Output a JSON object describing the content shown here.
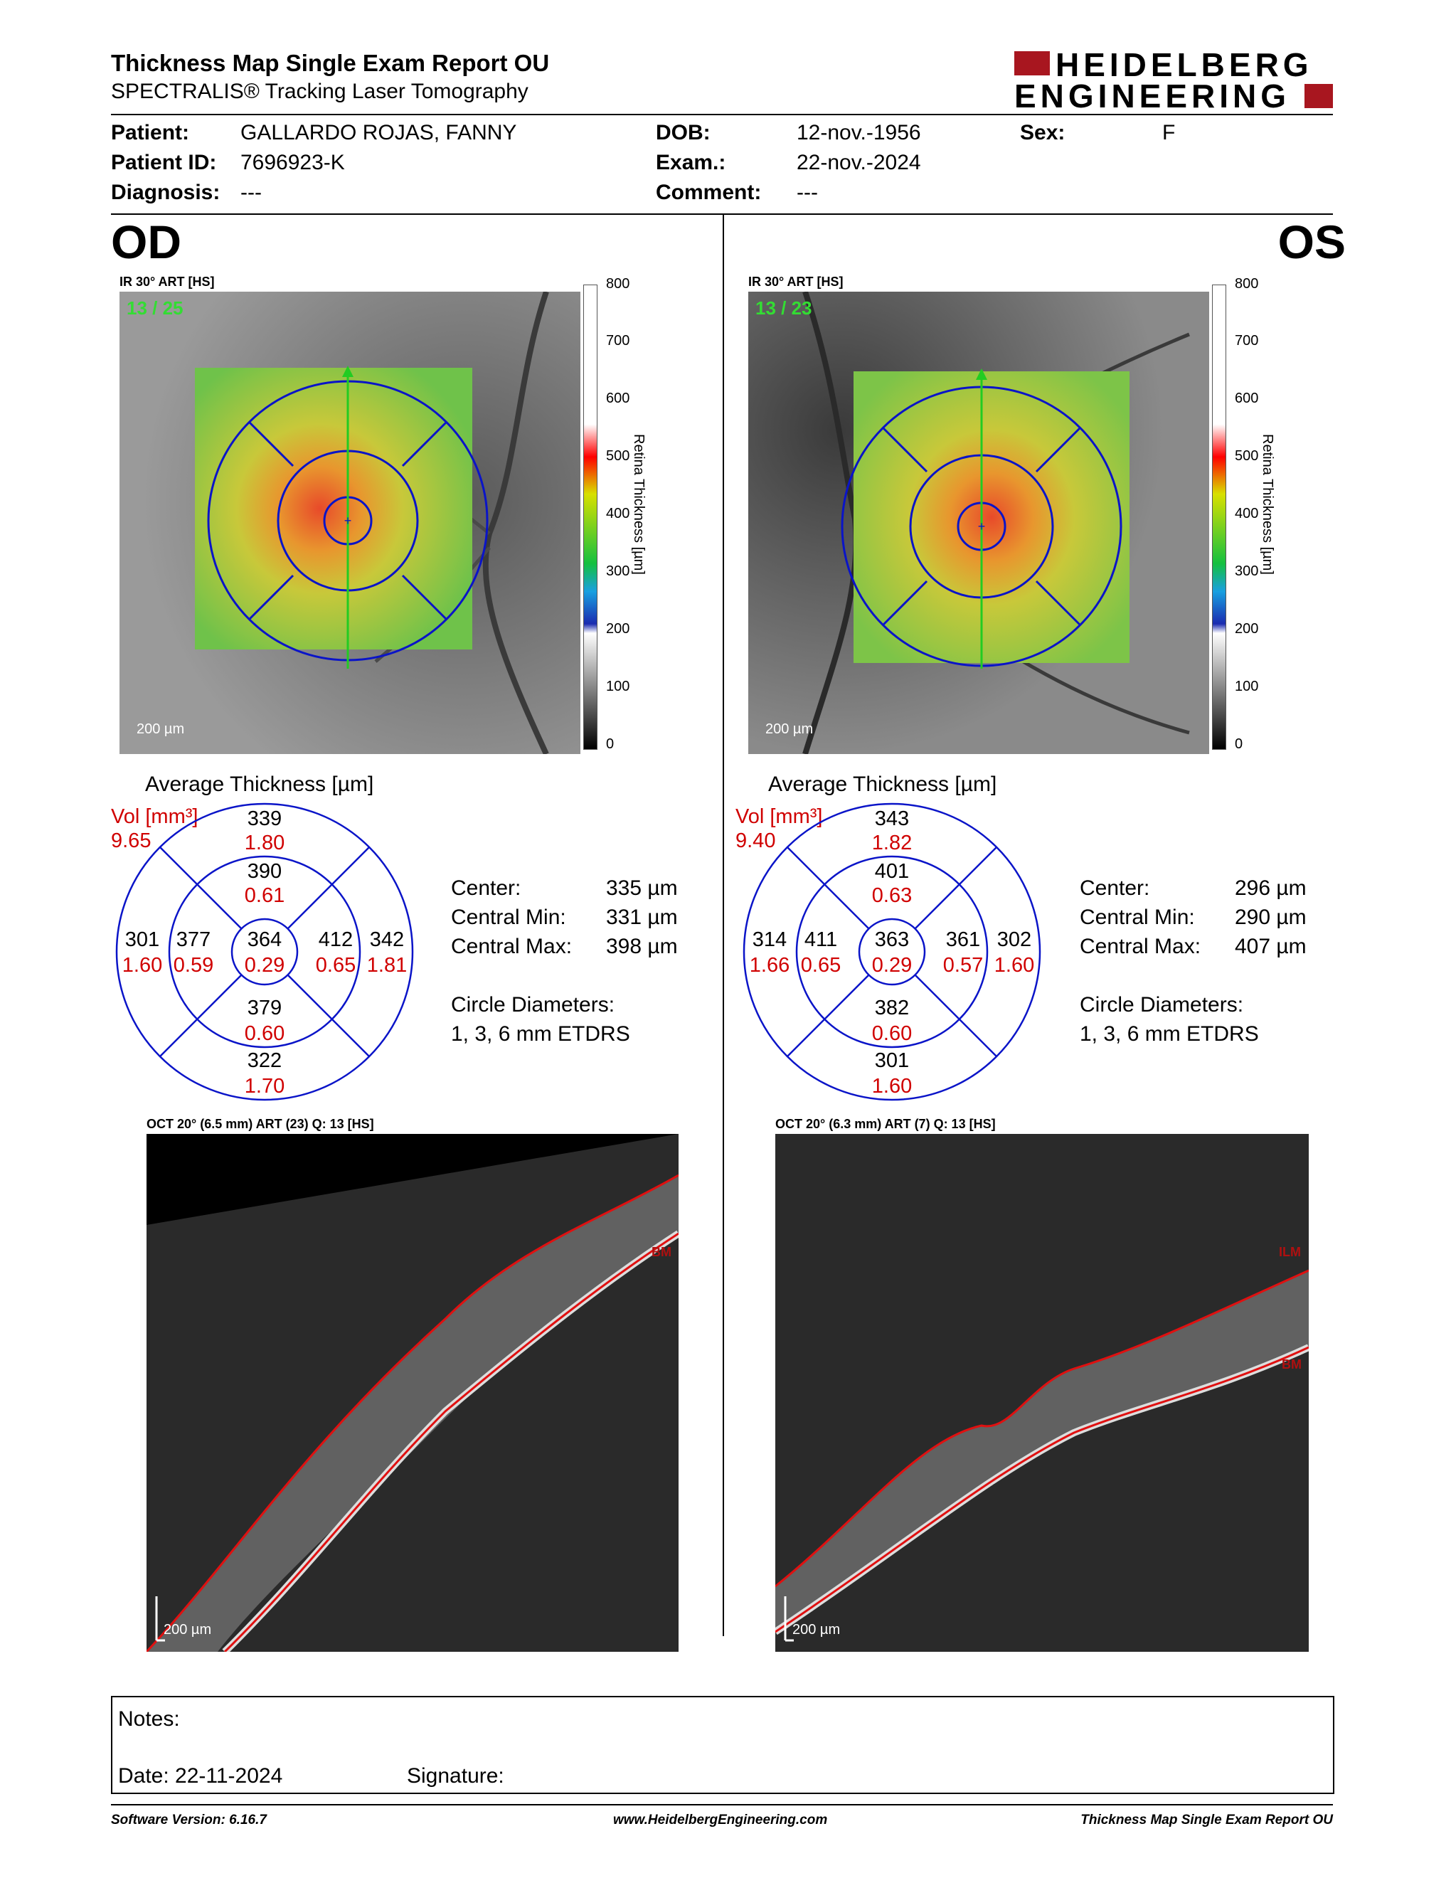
{
  "header": {
    "title": "Thickness Map Single Exam Report OU",
    "subtitle": "SPECTRALIS® Tracking Laser Tomography",
    "logo_line1": "HEIDELBERG",
    "logo_line2": "ENGINEERING",
    "brand_color": "#a8161f"
  },
  "patient": {
    "patient_label": "Patient:",
    "patient_value": "GALLARDO ROJAS, FANNY",
    "id_label": "Patient ID:",
    "id_value": "7696923-K",
    "diagnosis_label": "Diagnosis:",
    "diagnosis_value": "---",
    "dob_label": "DOB:",
    "dob_value": "12-nov.-1956",
    "exam_label": "Exam.:",
    "exam_value": "22-nov.-2024",
    "comment_label": "Comment:",
    "comment_value": "---",
    "sex_label": "Sex:",
    "sex_value": "F"
  },
  "colorbar": {
    "ticks": [
      "800",
      "700",
      "600",
      "500",
      "400",
      "300",
      "200",
      "100",
      "0"
    ],
    "title": "Retina  Thickness [µm]"
  },
  "od": {
    "eye": "OD",
    "ir_caption": "IR 30° ART [HS]",
    "counter": "13 / 25",
    "scale": "200 µm",
    "avg_title": "Average Thickness [µm]",
    "vol_label": "Vol [mm³]",
    "vol_value": "9.65",
    "etdrs": {
      "sup_outer": "339",
      "sup_outer_vol": "1.80",
      "sup_inner": "390",
      "sup_inner_vol": "0.61",
      "temp_outer": "301",
      "temp_outer_vol": "1.60",
      "temp_inner": "377",
      "temp_inner_vol": "0.59",
      "center": "364",
      "center_vol": "0.29",
      "nas_inner": "412",
      "nas_inner_vol": "0.65",
      "nas_outer": "342",
      "nas_outer_vol": "1.81",
      "inf_inner": "379",
      "inf_inner_vol": "0.60",
      "inf_outer": "322",
      "inf_outer_vol": "1.70"
    },
    "center_label": "Center:",
    "center_value": "335 µm",
    "cmin_label": "Central Min:",
    "cmin_value": "331 µm",
    "cmax_label": "Central Max:",
    "cmax_value": "398 µm",
    "diam_label": "Circle Diameters:",
    "diam_value": "1, 3, 6 mm ETDRS",
    "oct_caption": "OCT 20° (6.5 mm) ART (23) Q: 13 [HS]",
    "oct_layers": [
      "BM"
    ],
    "oct_scale": "200 µm"
  },
  "os": {
    "eye": "OS",
    "ir_caption": "IR 30° ART [HS]",
    "counter": "13 / 23",
    "scale": "200 µm",
    "avg_title": "Average Thickness [µm]",
    "vol_label": "Vol [mm³]",
    "vol_value": "9.40",
    "etdrs": {
      "sup_outer": "343",
      "sup_outer_vol": "1.82",
      "sup_inner": "401",
      "sup_inner_vol": "0.63",
      "temp_outer": "314",
      "temp_outer_vol": "1.66",
      "temp_inner": "411",
      "temp_inner_vol": "0.65",
      "center": "363",
      "center_vol": "0.29",
      "nas_inner": "361",
      "nas_inner_vol": "0.57",
      "nas_outer": "302",
      "nas_outer_vol": "1.60",
      "inf_inner": "382",
      "inf_inner_vol": "0.60",
      "inf_outer": "301",
      "inf_outer_vol": "1.60"
    },
    "center_label": "Center:",
    "center_value": "296 µm",
    "cmin_label": "Central Min:",
    "cmin_value": "290 µm",
    "cmax_label": "Central Max:",
    "cmax_value": "407 µm",
    "diam_label": "Circle Diameters:",
    "diam_value": "1, 3, 6 mm ETDRS",
    "oct_caption": "OCT 20° (6.3 mm) ART (7) Q: 13 [HS]",
    "oct_layers": [
      "ILM",
      "BM"
    ],
    "oct_scale": "200 µm"
  },
  "notes": {
    "notes_label": "Notes:",
    "date_label": "Date: 22-11-2024",
    "signature_label": "Signature:"
  },
  "footer": {
    "software": "Software Version: 6.16.7",
    "website": "www.HeidelbergEngineering.com",
    "report_name": "Thickness Map Single Exam Report OU"
  }
}
